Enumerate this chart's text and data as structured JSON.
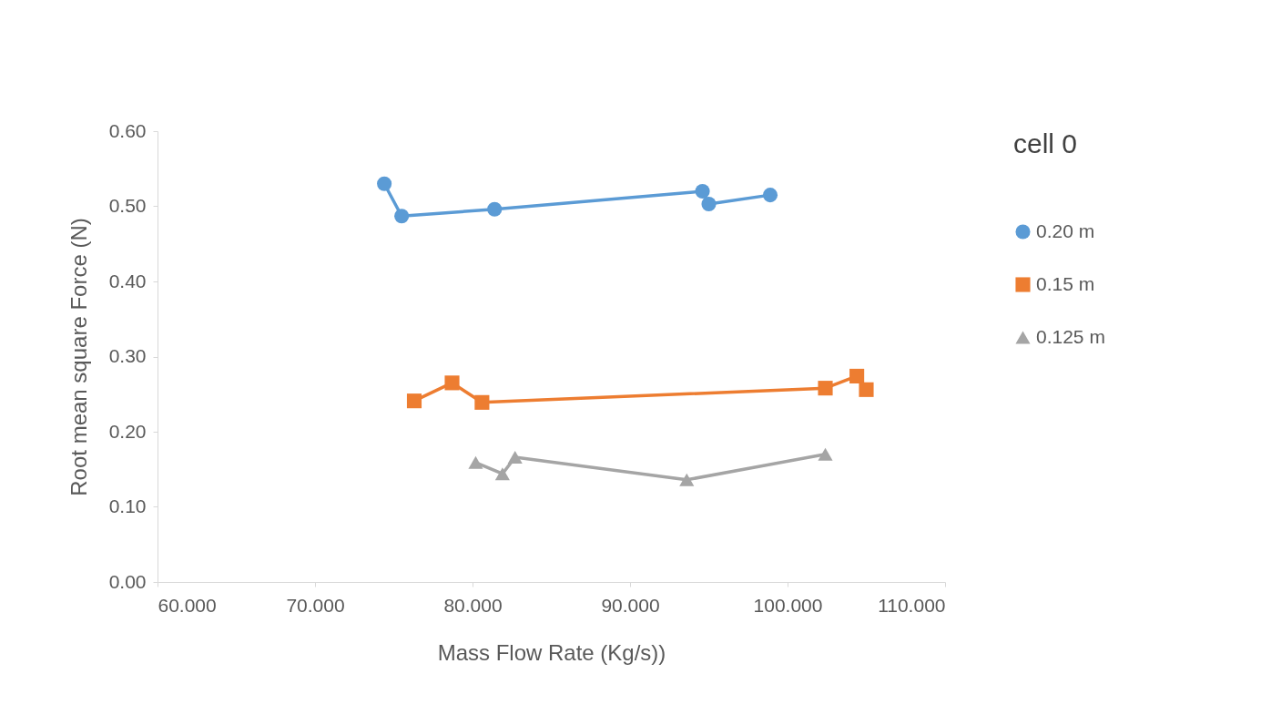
{
  "chart_data": {
    "type": "line",
    "xlabel": "Mass Flow Rate (Kg/s))",
    "ylabel": "Root mean square Force (N)",
    "legend_title": "cell 0",
    "legend": "right",
    "grid": false,
    "xlim": [
      60,
      110
    ],
    "xticks": [
      {
        "value": 60,
        "label": "60.000"
      },
      {
        "value": 70,
        "label": "70.000"
      },
      {
        "value": 80,
        "label": "80.000"
      },
      {
        "value": 90,
        "label": "90.000"
      },
      {
        "value": 100,
        "label": "100.000"
      },
      {
        "value": 110,
        "label": "110.000"
      }
    ],
    "ylim": [
      0,
      0.6
    ],
    "yticks": [
      {
        "value": 0,
        "label": "0.00"
      },
      {
        "value": 0.1,
        "label": "0.10"
      },
      {
        "value": 0.2,
        "label": "0.20"
      },
      {
        "value": 0.3,
        "label": "0.30"
      },
      {
        "value": 0.4,
        "label": "0.40"
      },
      {
        "value": 0.5,
        "label": "0.50"
      },
      {
        "value": 0.6,
        "label": "0.60"
      }
    ],
    "series": [
      {
        "name": "0.20 m",
        "color": "#5b9bd5",
        "marker": "circle",
        "x": [
          74.4,
          75.5,
          81.4,
          94.6,
          95.0,
          98.9
        ],
        "values": [
          0.53,
          0.487,
          0.496,
          0.52,
          0.503,
          0.515
        ]
      },
      {
        "name": "0.15 m",
        "color": "#ed7d31",
        "marker": "square",
        "x": [
          76.3,
          78.7,
          80.6,
          102.4,
          104.4,
          105.0
        ],
        "values": [
          0.241,
          0.265,
          0.239,
          0.258,
          0.274,
          0.256
        ]
      },
      {
        "name": "0.125 m",
        "color": "#a5a5a5",
        "marker": "triangle",
        "x": [
          80.2,
          81.9,
          82.7,
          93.6,
          102.4
        ],
        "values": [
          0.159,
          0.144,
          0.166,
          0.136,
          0.17
        ]
      }
    ]
  }
}
